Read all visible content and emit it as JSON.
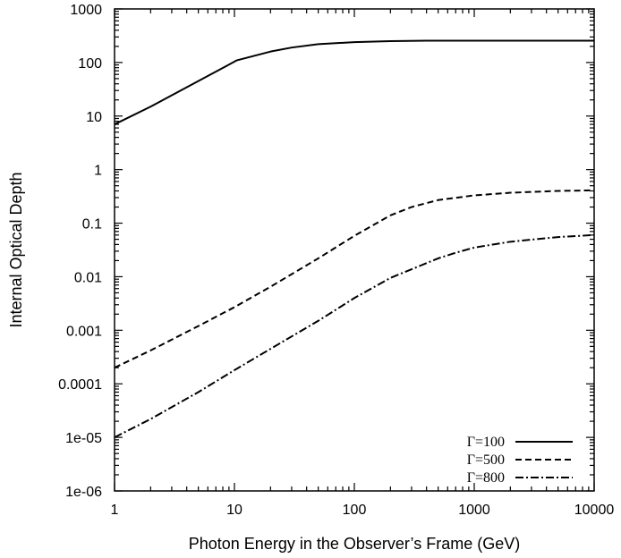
{
  "chart_data": {
    "type": "line",
    "title": "",
    "xlabel": "Photon Energy in the Observer’s Frame (GeV)",
    "ylabel": "Internal Optical Depth",
    "xscale": "log",
    "yscale": "log",
    "xlim": [
      1,
      10000
    ],
    "ylim": [
      1e-06,
      1000
    ],
    "grid": false,
    "legend_position": "bottom-right",
    "x_ticks": [
      1,
      10,
      100,
      1000,
      10000
    ],
    "x_tick_labels": [
      "1",
      "10",
      "100",
      "1000",
      "10000"
    ],
    "y_ticks": [
      1e-06,
      1e-05,
      0.0001,
      0.001,
      0.01,
      0.1,
      1,
      10,
      100,
      1000
    ],
    "y_tick_labels": [
      "1e-06",
      "1e-05",
      "0.0001",
      "0.001",
      "0.01",
      "0.1",
      "1",
      "10",
      "100",
      "1000"
    ],
    "series": [
      {
        "name": "Γ=100",
        "style": "solid",
        "x": [
          1,
          2,
          5,
          10.5,
          20,
          30,
          50,
          100,
          200,
          400,
          1000,
          3000,
          10000
        ],
        "y": [
          7,
          15,
          45,
          110,
          160,
          190,
          220,
          240,
          250,
          255,
          255,
          255,
          255
        ]
      },
      {
        "name": "Γ=500",
        "style": "dashed",
        "x": [
          1,
          2,
          5,
          10,
          20,
          50,
          100,
          200,
          300,
          500,
          1000,
          2000,
          5000,
          10000
        ],
        "y": [
          0.0002,
          0.00042,
          0.0012,
          0.0027,
          0.0065,
          0.022,
          0.058,
          0.14,
          0.2,
          0.27,
          0.33,
          0.37,
          0.4,
          0.41
        ]
      },
      {
        "name": "Γ=800",
        "style": "dashdot",
        "x": [
          1,
          2,
          5,
          10,
          20,
          50,
          100,
          200,
          500,
          700,
          1000,
          2000,
          5000,
          10000
        ],
        "y": [
          1e-05,
          2.2e-05,
          7e-05,
          0.00018,
          0.00045,
          0.0015,
          0.004,
          0.0095,
          0.022,
          0.028,
          0.035,
          0.045,
          0.055,
          0.06
        ]
      }
    ]
  }
}
